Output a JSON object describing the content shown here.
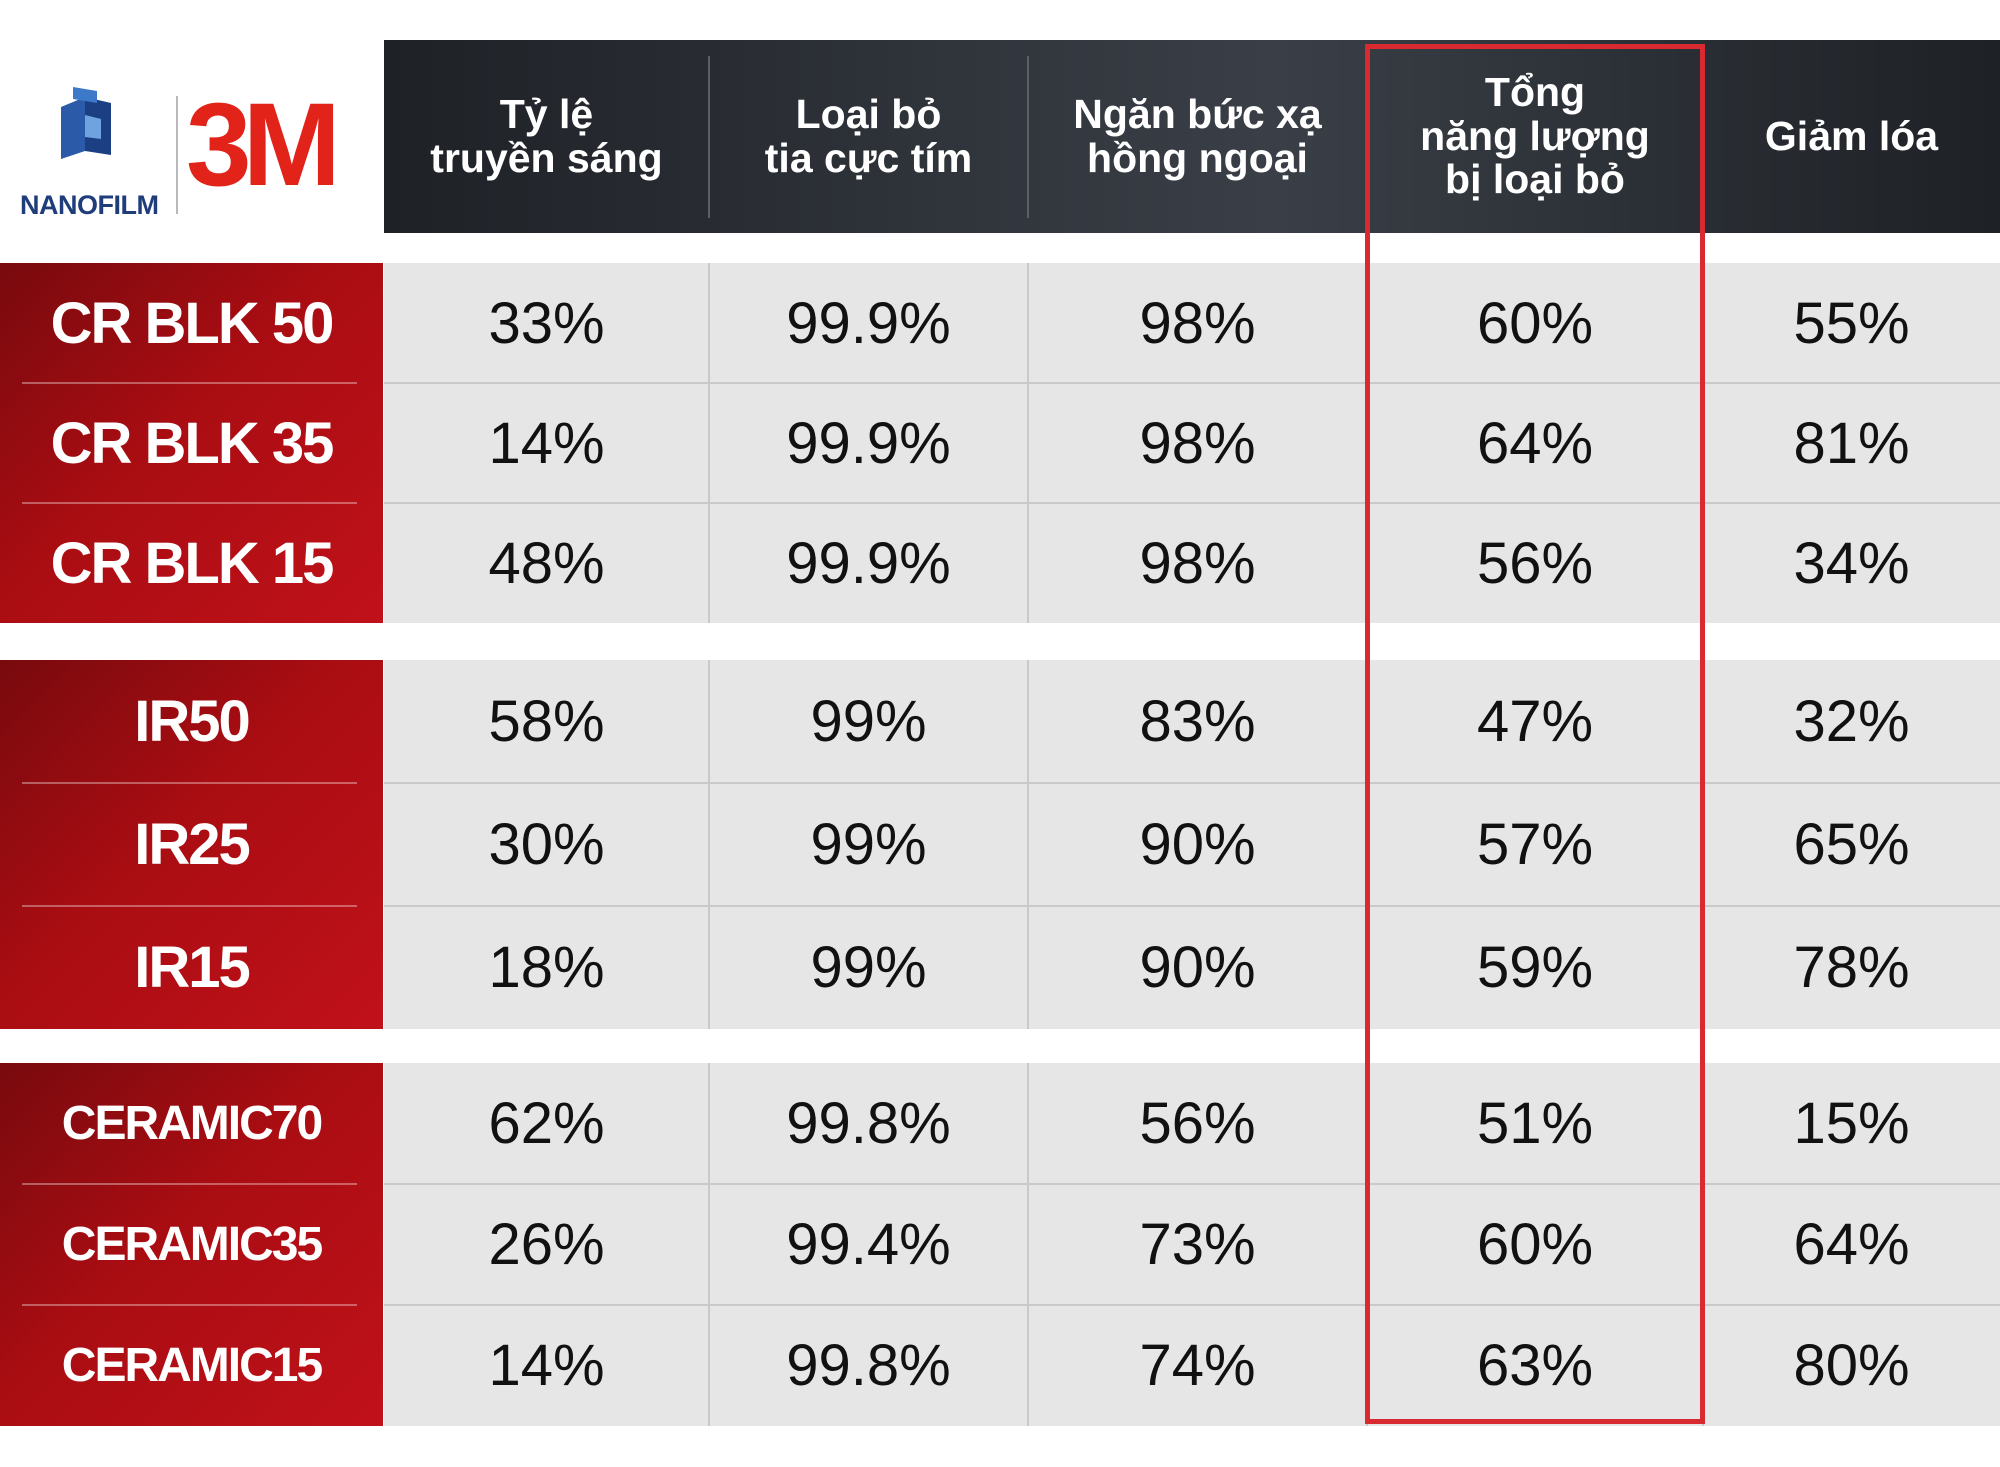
{
  "brand": {
    "nanofilm": "NANOFILM",
    "threem": "3M"
  },
  "chart_data": {
    "type": "table",
    "columns": [
      "Tỷ lệ\ntruyền sáng",
      "Loại bỏ\ntia cực tím",
      "Ngăn bức xạ\nhồng ngoại",
      "Tổng\nnăng lượng\nbị loại bỏ",
      "Giảm lóa"
    ],
    "highlighted_column": 3,
    "groups": [
      {
        "rows": [
          {
            "name": "CR BLK 50",
            "values": [
              "33%",
              "99.9%",
              "98%",
              "60%",
              "55%"
            ]
          },
          {
            "name": "CR BLK 35",
            "values": [
              "14%",
              "99.9%",
              "98%",
              "64%",
              "81%"
            ]
          },
          {
            "name": "CR BLK 15",
            "values": [
              "48%",
              "99.9%",
              "98%",
              "56%",
              "34%"
            ]
          }
        ]
      },
      {
        "rows": [
          {
            "name": "IR50",
            "values": [
              "58%",
              "99%",
              "83%",
              "47%",
              "32%"
            ]
          },
          {
            "name": "IR25",
            "values": [
              "30%",
              "99%",
              "90%",
              "57%",
              "65%"
            ]
          },
          {
            "name": "IR15",
            "values": [
              "18%",
              "99%",
              "90%",
              "59%",
              "78%"
            ]
          }
        ]
      },
      {
        "rows": [
          {
            "name": "CERAMIC70",
            "values": [
              "62%",
              "99.8%",
              "56%",
              "51%",
              "15%"
            ]
          },
          {
            "name": "CERAMIC35",
            "values": [
              "26%",
              "99.4%",
              "73%",
              "60%",
              "64%"
            ]
          },
          {
            "name": "CERAMIC15",
            "values": [
              "14%",
              "99.8%",
              "74%",
              "63%",
              "80%"
            ]
          }
        ]
      }
    ]
  },
  "colors": {
    "header_dark": "#1e2126",
    "label_red": "#b30f16",
    "cell_bg": "#e6e6e6",
    "highlight": "#d82a30",
    "brand_red": "#e2231a",
    "nanofilm_blue": "#1f3d7a"
  }
}
